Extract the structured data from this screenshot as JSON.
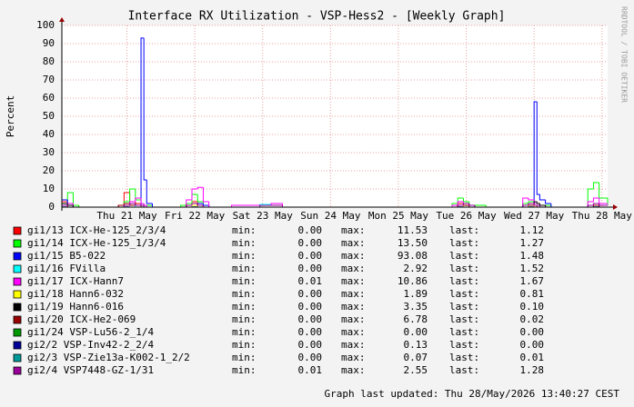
{
  "chart_data": {
    "type": "step",
    "title": "Interface RX Utilization - VSP-Hess2 - [Weekly Graph]",
    "y_label": "Percent",
    "side_text": "RRDTOOL / TOBI OETIKER",
    "footer": "Graph last updated: Thu 28/May/2026 13:40:27 CEST",
    "stat_labels": [
      "min:",
      "max:",
      "last:"
    ],
    "grid": true,
    "ylim": [
      0,
      100
    ],
    "yticks": [
      0,
      10,
      20,
      30,
      40,
      50,
      60,
      70,
      80,
      90,
      100
    ],
    "xlim": [
      0,
      193
    ],
    "xticks": [
      {
        "value": 23,
        "label": "Thu 21 May"
      },
      {
        "value": 47,
        "label": "Fri 22 May"
      },
      {
        "value": 71,
        "label": "Sat 23 May"
      },
      {
        "value": 95,
        "label": "Sun 24 May"
      },
      {
        "value": 119,
        "label": "Mon 25 May"
      },
      {
        "value": 143,
        "label": "Tue 26 May"
      },
      {
        "value": 167,
        "label": "Wed 27 May"
      },
      {
        "value": 191,
        "label": "Thu 28 May"
      }
    ],
    "x": [
      0,
      2,
      4,
      6,
      18,
      20,
      22,
      24,
      26,
      28,
      29,
      30,
      32,
      42,
      44,
      46,
      48,
      50,
      52,
      60,
      70,
      74,
      78,
      138,
      140,
      142,
      144,
      146,
      150,
      160,
      163,
      165,
      167,
      168,
      169,
      171,
      173,
      184,
      186,
      188,
      190,
      193
    ],
    "series": [
      {
        "name": "gi1/13 ICX-He-125_2/3/4",
        "color": "#ff0000",
        "min": "0.00",
        "max": "11.53",
        "last": "1.12",
        "values": [
          3,
          2,
          1,
          0,
          0,
          1,
          8,
          3,
          2,
          1,
          1,
          0,
          0,
          0,
          2,
          3,
          2,
          1,
          0,
          0,
          0,
          0,
          0,
          1,
          2,
          1,
          0,
          0,
          0,
          0,
          1,
          2,
          1,
          1,
          1,
          0,
          0,
          0,
          1,
          2,
          1,
          1.12
        ]
      },
      {
        "name": "gi1/14 ICX-He-125_1/3/4",
        "color": "#00ff00",
        "min": "0.00",
        "max": "13.50",
        "last": "1.27",
        "values": [
          2,
          8,
          1,
          0,
          0,
          1,
          3,
          10,
          4,
          2,
          1,
          1,
          0,
          1,
          2,
          7,
          3,
          1,
          0,
          0,
          1,
          1,
          0,
          2,
          5,
          3,
          1,
          1,
          0,
          0,
          2,
          3,
          2,
          2,
          1,
          1,
          0,
          0,
          10,
          13.5,
          5,
          1.27
        ]
      },
      {
        "name": "gi1/15 B5-022",
        "color": "#0000ff",
        "min": "0.00",
        "max": "93.08",
        "last": "1.48",
        "values": [
          4,
          1,
          0,
          0,
          0,
          0,
          1,
          2,
          1,
          93.08,
          15,
          2,
          0,
          0,
          1,
          1,
          2,
          1,
          0,
          0,
          0,
          0,
          0,
          0,
          1,
          2,
          1,
          0,
          0,
          0,
          1,
          2,
          58,
          7,
          4,
          2,
          0,
          0,
          1,
          2,
          1,
          1.48
        ]
      },
      {
        "name": "gi1/16 FVilla",
        "color": "#00ffff",
        "min": "0.00",
        "max": "2.92",
        "last": "1.52",
        "values": [
          1,
          0,
          0,
          0,
          0,
          0,
          1,
          1,
          0,
          1,
          0,
          0,
          0,
          0,
          0,
          1,
          0,
          0,
          0,
          0,
          1.5,
          1,
          0,
          0,
          1,
          1,
          0,
          0,
          0,
          0,
          0,
          1,
          1,
          1,
          0,
          0,
          0,
          0,
          0,
          1,
          1,
          1.52
        ]
      },
      {
        "name": "gi1/17 ICX-Hann7",
        "color": "#ff00ff",
        "min": "0.01",
        "max": "10.86",
        "last": "1.67",
        "values": [
          1,
          2,
          0,
          0,
          0,
          1,
          2,
          3,
          5,
          2,
          1,
          0,
          0,
          0,
          4,
          10,
          10.86,
          3,
          0,
          1,
          1,
          2,
          0,
          1,
          3,
          2,
          1,
          0,
          0,
          0,
          5,
          4,
          2,
          2,
          1,
          0,
          0,
          0,
          3,
          5,
          2,
          1.67
        ]
      },
      {
        "name": "gi1/18 Hann6-032",
        "color": "#ffff00",
        "min": "0.00",
        "max": "1.89",
        "last": "0.81",
        "values": [
          1,
          0,
          0,
          0,
          0,
          0,
          1,
          1,
          1,
          0,
          0,
          0,
          0,
          0,
          0,
          1,
          0,
          0,
          0,
          0,
          0,
          0,
          0,
          0,
          1,
          0,
          0,
          0,
          0,
          0,
          0,
          1,
          0,
          0,
          0,
          0,
          0,
          0,
          0,
          1,
          1,
          0.81
        ]
      },
      {
        "name": "gi1/19 Hann6-016",
        "color": "#000000",
        "min": "0.00",
        "max": "3.35",
        "last": "0.10",
        "values": [
          2,
          1,
          0,
          0,
          0,
          0,
          1,
          2,
          1,
          1,
          0,
          0,
          0,
          0,
          1,
          2,
          1,
          0,
          0,
          0,
          0,
          0,
          0,
          0,
          1,
          2,
          1,
          0,
          0,
          0,
          1,
          2,
          3,
          2,
          1,
          0,
          0,
          0,
          0,
          1,
          0,
          0.1
        ]
      },
      {
        "name": "gi1/20 ICX-He2-069",
        "color": "#990000",
        "min": "0.00",
        "max": "6.78",
        "last": "0.02",
        "values": [
          1,
          0,
          0,
          0,
          0,
          1,
          2,
          1,
          1,
          0,
          0,
          0,
          0,
          0,
          1,
          2,
          1,
          0,
          0,
          0,
          0,
          0,
          0,
          0,
          1,
          1,
          0,
          0,
          0,
          0,
          1,
          1,
          1,
          0,
          0,
          0,
          0,
          0,
          0,
          1,
          0,
          0.02
        ]
      },
      {
        "name": "gi1/24 VSP-Lu56-2_1/4",
        "color": "#009900",
        "min": "0.00",
        "max": "0.00",
        "last": "0.00",
        "values": [
          0,
          0,
          0,
          0,
          0,
          0,
          0,
          0,
          0,
          0,
          0,
          0,
          0,
          0,
          0,
          0,
          0,
          0,
          0,
          0,
          0,
          0,
          0,
          0,
          0,
          0,
          0,
          0,
          0,
          0,
          0,
          0,
          0,
          0,
          0,
          0,
          0,
          0,
          0,
          0,
          0,
          0
        ]
      },
      {
        "name": "gi2/2 VSP-Inv42-2_2/4",
        "color": "#000099",
        "min": "0.00",
        "max": "0.13",
        "last": "0.00",
        "values": [
          0.1,
          0,
          0,
          0,
          0,
          0,
          0.1,
          0,
          0,
          0,
          0,
          0,
          0,
          0,
          0,
          0.1,
          0,
          0,
          0,
          0,
          0,
          0,
          0,
          0,
          0.1,
          0,
          0,
          0,
          0,
          0,
          0,
          0.1,
          0,
          0,
          0,
          0,
          0,
          0,
          0,
          0.1,
          0,
          0
        ]
      },
      {
        "name": "gi2/3 VSP-Zie13a-K002-1_2/2",
        "color": "#009999",
        "min": "0.00",
        "max": "0.07",
        "last": "0.01",
        "values": [
          0.05,
          0,
          0,
          0,
          0,
          0,
          0.05,
          0,
          0,
          0,
          0,
          0,
          0,
          0,
          0,
          0.05,
          0,
          0,
          0,
          0,
          0,
          0,
          0,
          0,
          0.05,
          0,
          0,
          0,
          0,
          0,
          0,
          0.05,
          0,
          0,
          0,
          0,
          0,
          0,
          0,
          0.05,
          0,
          0.01
        ]
      },
      {
        "name": "gi2/4 VSP7448-GZ-1/31",
        "color": "#990099",
        "min": "0.01",
        "max": "2.55",
        "last": "1.28",
        "values": [
          1,
          0,
          0,
          0,
          0,
          0,
          1,
          2,
          1,
          1,
          0,
          0,
          0,
          0,
          1,
          2,
          1,
          0,
          0,
          0,
          1,
          1,
          0,
          0,
          1,
          2,
          1,
          0,
          0,
          0,
          1,
          2,
          1,
          1,
          0,
          0,
          0,
          0,
          1,
          2,
          1,
          1.28
        ]
      }
    ]
  }
}
